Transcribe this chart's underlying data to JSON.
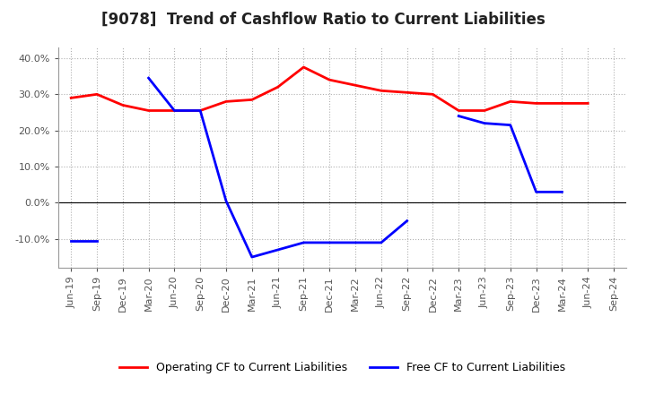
{
  "title": "[9078]  Trend of Cashflow Ratio to Current Liabilities",
  "x_labels": [
    "Jun-19",
    "Sep-19",
    "Dec-19",
    "Mar-20",
    "Jun-20",
    "Sep-20",
    "Dec-20",
    "Mar-21",
    "Jun-21",
    "Sep-21",
    "Dec-21",
    "Mar-22",
    "Jun-22",
    "Sep-22",
    "Dec-22",
    "Mar-23",
    "Jun-23",
    "Sep-23",
    "Dec-23",
    "Mar-24",
    "Jun-24",
    "Sep-24"
  ],
  "operating_cf": [
    29.0,
    30.0,
    27.0,
    25.5,
    25.5,
    25.5,
    28.0,
    28.5,
    32.0,
    37.5,
    34.0,
    32.5,
    31.0,
    30.5,
    30.0,
    25.5,
    25.5,
    28.0,
    27.5,
    27.5,
    27.5,
    null
  ],
  "free_cf": [
    -10.5,
    -10.5,
    null,
    34.5,
    25.5,
    25.5,
    0.5,
    -15.0,
    -13.0,
    -11.0,
    -11.0,
    -11.0,
    -11.0,
    -5.0,
    null,
    24.0,
    22.0,
    21.5,
    3.0,
    3.0,
    null,
    null
  ],
  "operating_color": "#ff0000",
  "free_color": "#0000ff",
  "ylim": [
    -18,
    43
  ],
  "yticks": [
    -10.0,
    0.0,
    10.0,
    20.0,
    30.0,
    40.0
  ],
  "ytick_labels": [
    "-10.0%",
    "0.0%",
    "10.0%",
    "20.0%",
    "30.0%",
    "40.0%"
  ],
  "background_color": "#ffffff",
  "grid_color": "#b0b0b0",
  "legend_op": "Operating CF to Current Liabilities",
  "legend_free": "Free CF to Current Liabilities",
  "title_fontsize": 12,
  "tick_fontsize": 8,
  "legend_fontsize": 9
}
